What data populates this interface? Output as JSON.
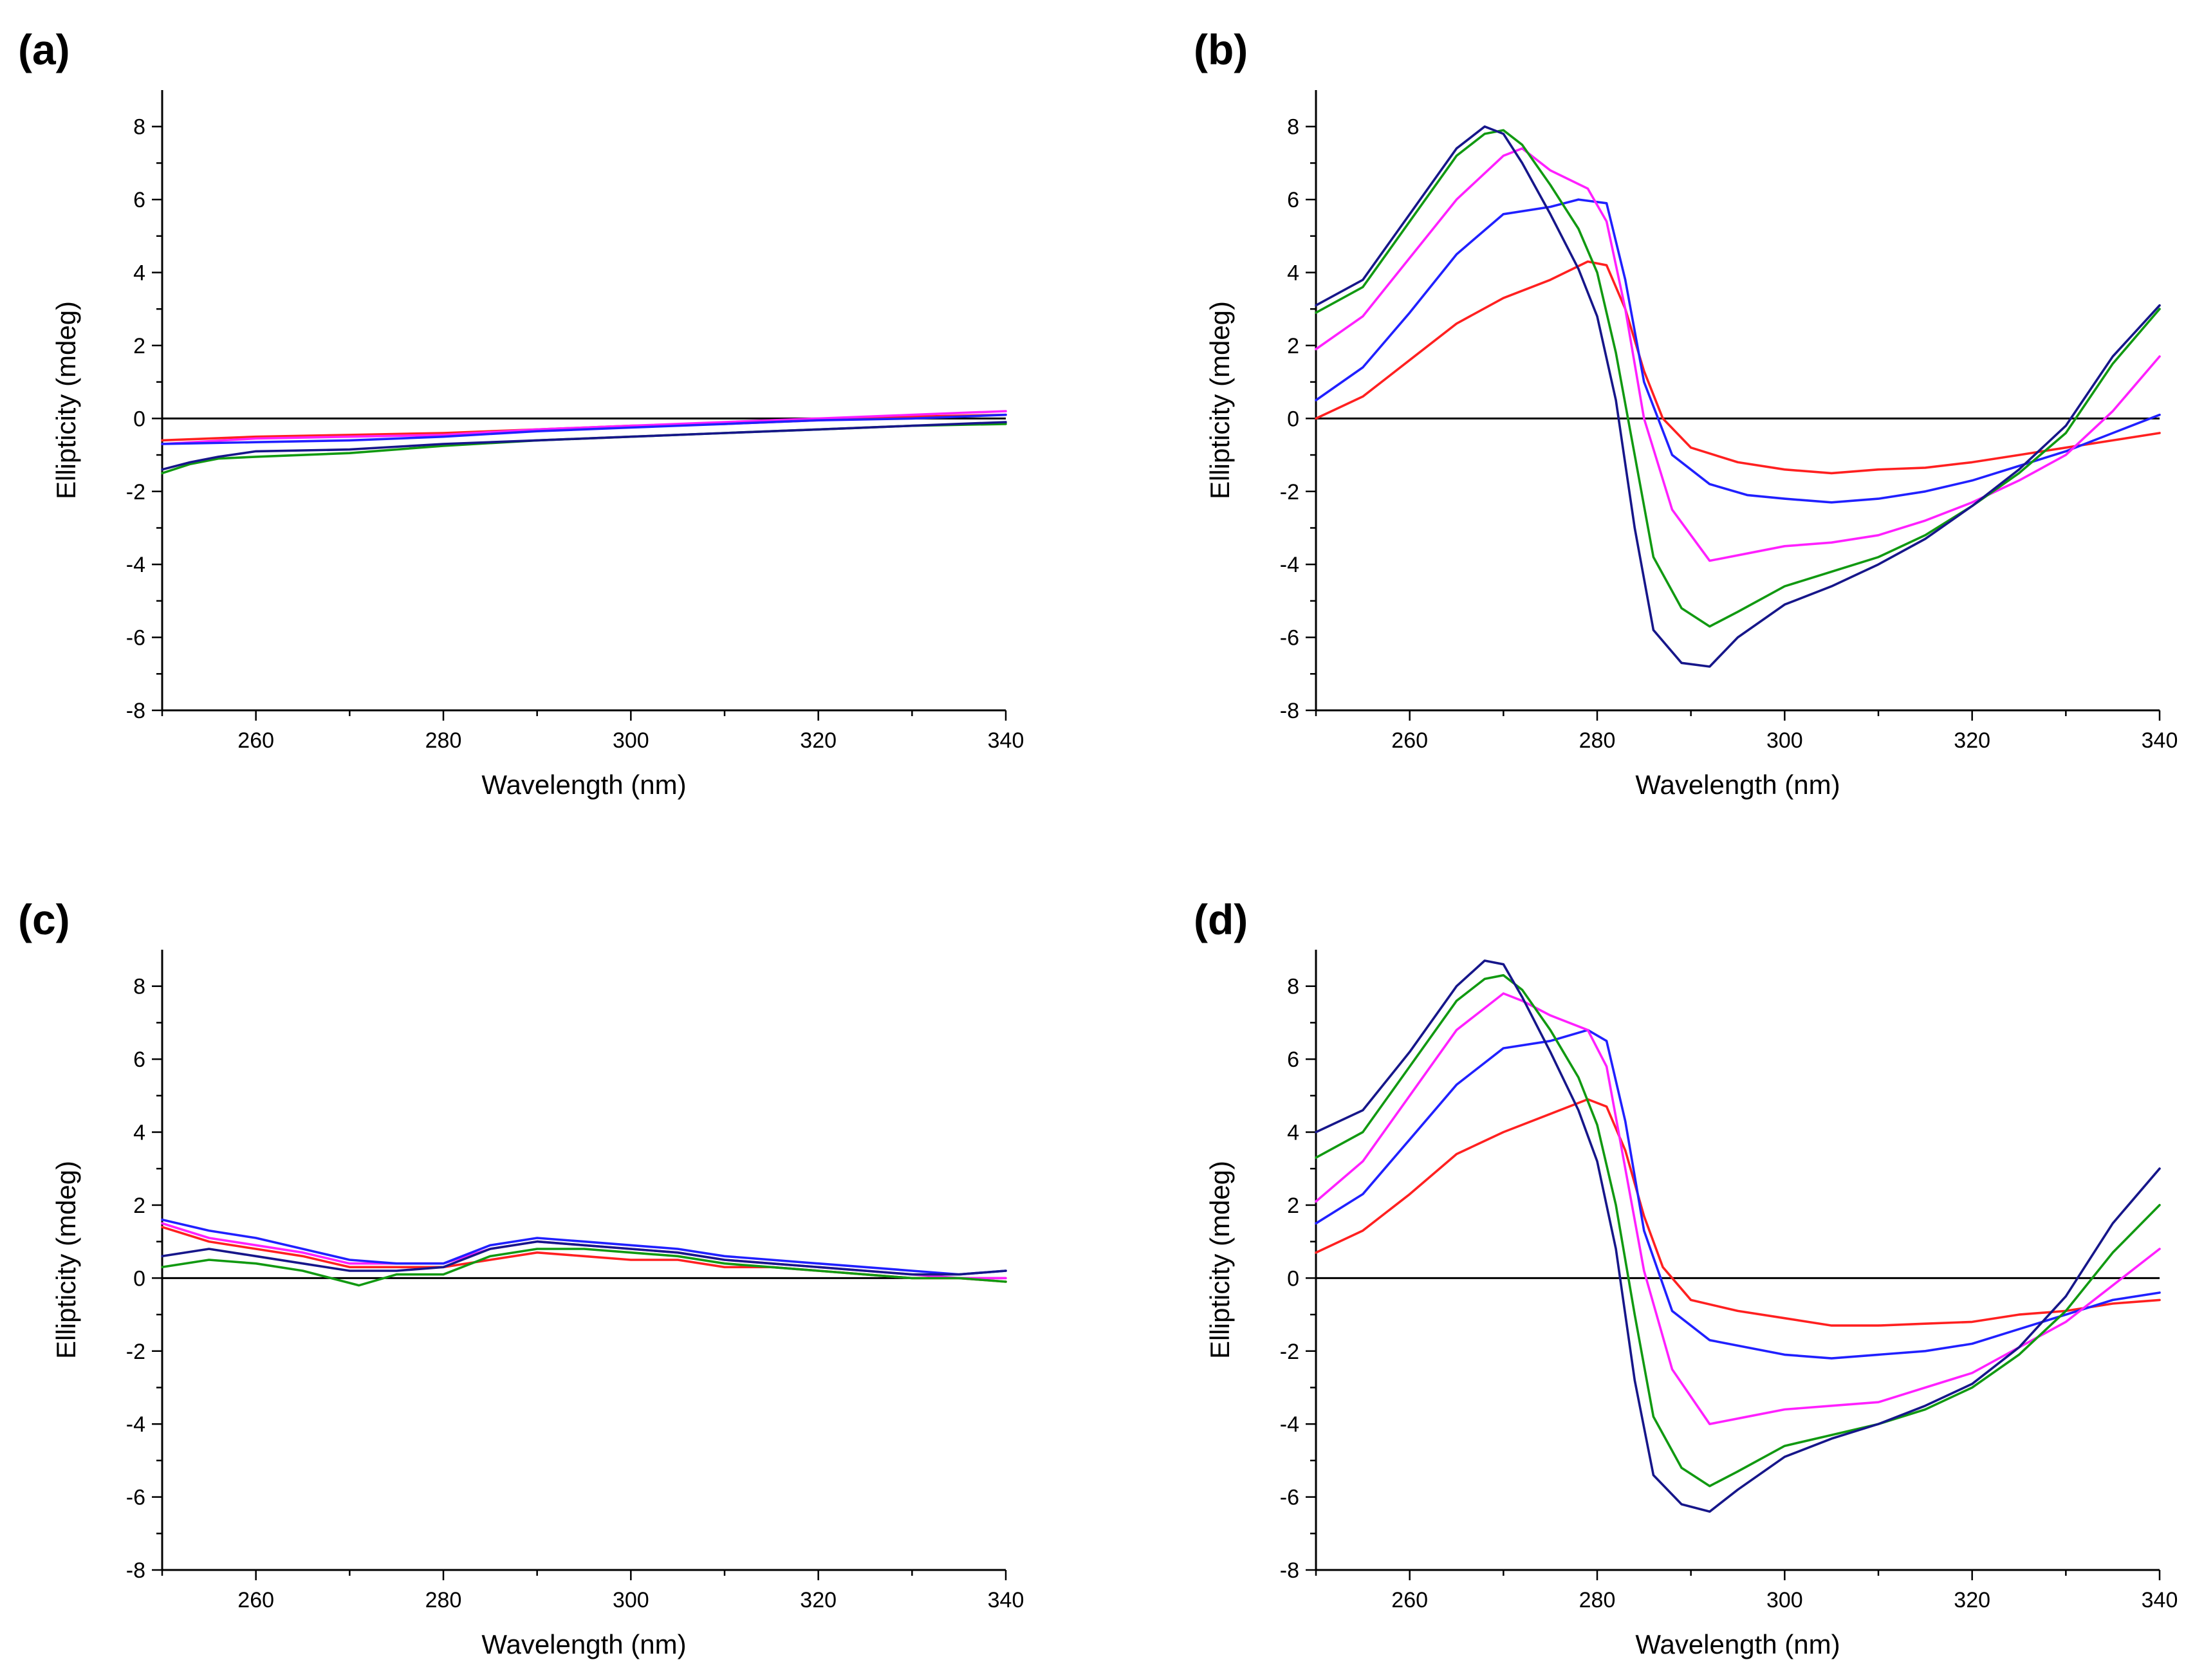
{
  "figure": {
    "panel_colors": {
      "red": "#ff2020",
      "blue": "#2020ff",
      "magenta": "#ff20ff",
      "green": "#119911",
      "navy": "#16168a"
    }
  },
  "chart_data": [
    {
      "type": "line",
      "panel_label": "(a)",
      "xlabel": "Wavelength (nm)",
      "ylabel": "Ellipticity (mdeg)",
      "xlim": [
        250,
        340
      ],
      "ylim": [
        -8,
        9
      ],
      "xticks": [
        260,
        280,
        300,
        320,
        340
      ],
      "yticks": [
        -8,
        -6,
        -4,
        -2,
        0,
        2,
        4,
        6,
        8
      ],
      "reference_line_y": 0,
      "series": [
        {
          "name": "red",
          "color": "#ff2020",
          "x": [
            250,
            260,
            270,
            280,
            290,
            300,
            310,
            320,
            330,
            340
          ],
          "y": [
            -0.6,
            -0.5,
            -0.45,
            -0.4,
            -0.3,
            -0.2,
            -0.15,
            -0.05,
            0.05,
            0.1
          ]
        },
        {
          "name": "magenta",
          "color": "#ff20ff",
          "x": [
            250,
            260,
            270,
            280,
            290,
            300,
            310,
            320,
            330,
            340
          ],
          "y": [
            -0.7,
            -0.55,
            -0.5,
            -0.45,
            -0.3,
            -0.2,
            -0.1,
            0.0,
            0.1,
            0.2
          ]
        },
        {
          "name": "blue",
          "color": "#2020ff",
          "x": [
            250,
            260,
            270,
            280,
            290,
            300,
            310,
            320,
            330,
            340
          ],
          "y": [
            -0.7,
            -0.65,
            -0.6,
            -0.5,
            -0.35,
            -0.25,
            -0.15,
            -0.05,
            0.0,
            0.1
          ]
        },
        {
          "name": "green",
          "color": "#119911",
          "x": [
            250,
            253,
            256,
            260,
            270,
            280,
            290,
            300,
            310,
            320,
            330,
            340
          ],
          "y": [
            -1.5,
            -1.25,
            -1.1,
            -1.05,
            -0.95,
            -0.75,
            -0.6,
            -0.5,
            -0.4,
            -0.3,
            -0.2,
            -0.15
          ]
        },
        {
          "name": "navy",
          "color": "#16168a",
          "x": [
            250,
            253,
            256,
            260,
            270,
            280,
            290,
            300,
            310,
            320,
            330,
            340
          ],
          "y": [
            -1.4,
            -1.2,
            -1.05,
            -0.9,
            -0.85,
            -0.7,
            -0.6,
            -0.5,
            -0.4,
            -0.3,
            -0.2,
            -0.1
          ]
        }
      ]
    },
    {
      "type": "line",
      "panel_label": "(b)",
      "xlabel": "Wavelength (nm)",
      "ylabel": "Ellipticity (mdeg)",
      "xlim": [
        250,
        340
      ],
      "ylim": [
        -8,
        9
      ],
      "xticks": [
        260,
        280,
        300,
        320,
        340
      ],
      "yticks": [
        -8,
        -6,
        -4,
        -2,
        0,
        2,
        4,
        6,
        8
      ],
      "reference_line_y": 0,
      "series": [
        {
          "name": "red",
          "color": "#ff2020",
          "x": [
            250,
            255,
            260,
            265,
            270,
            275,
            279,
            281,
            283,
            285,
            287,
            290,
            295,
            300,
            305,
            310,
            315,
            320,
            325,
            330,
            335,
            340
          ],
          "y": [
            0.0,
            0.6,
            1.6,
            2.6,
            3.3,
            3.8,
            4.3,
            4.2,
            3.0,
            1.3,
            0.0,
            -0.8,
            -1.2,
            -1.4,
            -1.5,
            -1.4,
            -1.35,
            -1.2,
            -1.0,
            -0.8,
            -0.6,
            -0.4
          ]
        },
        {
          "name": "blue",
          "color": "#2020ff",
          "x": [
            250,
            255,
            260,
            265,
            270,
            275,
            278,
            281,
            283,
            285,
            288,
            292,
            296,
            300,
            305,
            310,
            315,
            320,
            325,
            330,
            335,
            340
          ],
          "y": [
            0.5,
            1.4,
            2.9,
            4.5,
            5.6,
            5.8,
            6.0,
            5.9,
            3.8,
            1.0,
            -1.0,
            -1.8,
            -2.1,
            -2.2,
            -2.3,
            -2.2,
            -2.0,
            -1.7,
            -1.3,
            -0.9,
            -0.4,
            0.1
          ]
        },
        {
          "name": "magenta",
          "color": "#ff20ff",
          "x": [
            250,
            255,
            260,
            265,
            270,
            272,
            275,
            279,
            281,
            283,
            285,
            288,
            292,
            296,
            300,
            305,
            310,
            315,
            320,
            325,
            330,
            335,
            340
          ],
          "y": [
            1.9,
            2.8,
            4.4,
            6.0,
            7.2,
            7.4,
            6.8,
            6.3,
            5.4,
            3.0,
            0.0,
            -2.5,
            -3.9,
            -3.7,
            -3.5,
            -3.4,
            -3.2,
            -2.8,
            -2.3,
            -1.7,
            -1.0,
            0.2,
            1.7
          ]
        },
        {
          "name": "green",
          "color": "#119911",
          "x": [
            250,
            255,
            260,
            265,
            268,
            270,
            272,
            275,
            278,
            280,
            282,
            284,
            286,
            289,
            292,
            295,
            300,
            305,
            310,
            315,
            320,
            325,
            330,
            335,
            340
          ],
          "y": [
            2.9,
            3.6,
            5.4,
            7.2,
            7.8,
            7.9,
            7.5,
            6.4,
            5.2,
            4.0,
            1.8,
            -1.0,
            -3.8,
            -5.2,
            -5.7,
            -5.3,
            -4.6,
            -4.2,
            -3.8,
            -3.2,
            -2.4,
            -1.5,
            -0.4,
            1.5,
            3.0
          ]
        },
        {
          "name": "navy",
          "color": "#16168a",
          "x": [
            250,
            255,
            260,
            265,
            268,
            270,
            272,
            275,
            278,
            280,
            282,
            284,
            286,
            289,
            292,
            295,
            300,
            305,
            310,
            315,
            320,
            325,
            330,
            335,
            340
          ],
          "y": [
            3.1,
            3.8,
            5.6,
            7.4,
            8.0,
            7.8,
            7.0,
            5.6,
            4.1,
            2.8,
            0.5,
            -3.0,
            -5.8,
            -6.7,
            -6.8,
            -6.0,
            -5.1,
            -4.6,
            -4.0,
            -3.3,
            -2.4,
            -1.4,
            -0.2,
            1.7,
            3.1
          ]
        }
      ]
    },
    {
      "type": "line",
      "panel_label": "(c)",
      "xlabel": "Wavelength (nm)",
      "ylabel": "Ellipticity (mdeg)",
      "xlim": [
        250,
        340
      ],
      "ylim": [
        -8,
        9
      ],
      "xticks": [
        260,
        280,
        300,
        320,
        340
      ],
      "yticks": [
        -8,
        -6,
        -4,
        -2,
        0,
        2,
        4,
        6,
        8
      ],
      "reference_line_y": 0,
      "series": [
        {
          "name": "red",
          "color": "#ff2020",
          "x": [
            250,
            255,
            260,
            265,
            270,
            275,
            280,
            285,
            290,
            295,
            300,
            305,
            310,
            315,
            320,
            325,
            330,
            335,
            340
          ],
          "y": [
            1.4,
            1.0,
            0.8,
            0.6,
            0.3,
            0.3,
            0.3,
            0.5,
            0.7,
            0.6,
            0.5,
            0.5,
            0.3,
            0.3,
            0.2,
            0.1,
            0.0,
            0.0,
            -0.1
          ]
        },
        {
          "name": "magenta",
          "color": "#ff20ff",
          "x": [
            250,
            255,
            260,
            265,
            270,
            275,
            280,
            285,
            290,
            295,
            300,
            305,
            310,
            315,
            320,
            325,
            330,
            335,
            340
          ],
          "y": [
            1.5,
            1.1,
            0.9,
            0.7,
            0.4,
            0.4,
            0.4,
            0.8,
            1.0,
            0.9,
            0.8,
            0.7,
            0.5,
            0.4,
            0.3,
            0.2,
            0.1,
            0.0,
            0.0
          ]
        },
        {
          "name": "blue",
          "color": "#2020ff",
          "x": [
            250,
            255,
            260,
            265,
            270,
            275,
            280,
            285,
            290,
            295,
            300,
            305,
            310,
            315,
            320,
            325,
            330,
            335,
            340
          ],
          "y": [
            1.6,
            1.3,
            1.1,
            0.8,
            0.5,
            0.4,
            0.4,
            0.9,
            1.1,
            1.0,
            0.9,
            0.8,
            0.6,
            0.5,
            0.4,
            0.3,
            0.2,
            0.1,
            0.2
          ]
        },
        {
          "name": "green",
          "color": "#119911",
          "x": [
            250,
            255,
            260,
            265,
            268,
            271,
            275,
            280,
            285,
            290,
            295,
            300,
            305,
            310,
            315,
            320,
            325,
            330,
            335,
            340
          ],
          "y": [
            0.3,
            0.5,
            0.4,
            0.2,
            0.0,
            -0.2,
            0.1,
            0.1,
            0.6,
            0.8,
            0.8,
            0.7,
            0.6,
            0.4,
            0.3,
            0.2,
            0.1,
            0.0,
            0.0,
            -0.1
          ]
        },
        {
          "name": "navy",
          "color": "#16168a",
          "x": [
            250,
            255,
            260,
            265,
            270,
            275,
            280,
            285,
            290,
            295,
            300,
            305,
            310,
            315,
            320,
            325,
            330,
            335,
            340
          ],
          "y": [
            0.6,
            0.8,
            0.6,
            0.4,
            0.2,
            0.2,
            0.3,
            0.8,
            1.0,
            0.9,
            0.8,
            0.7,
            0.5,
            0.4,
            0.3,
            0.2,
            0.1,
            0.1,
            0.2
          ]
        }
      ]
    },
    {
      "type": "line",
      "panel_label": "(d)",
      "xlabel": "Wavelength (nm)",
      "ylabel": "Ellipticity (mdeg)",
      "xlim": [
        250,
        340
      ],
      "ylim": [
        -8,
        9
      ],
      "xticks": [
        260,
        280,
        300,
        320,
        340
      ],
      "yticks": [
        -8,
        -6,
        -4,
        -2,
        0,
        2,
        4,
        6,
        8
      ],
      "reference_line_y": 0,
      "series": [
        {
          "name": "red",
          "color": "#ff2020",
          "x": [
            250,
            255,
            260,
            265,
            270,
            275,
            279,
            281,
            283,
            285,
            287,
            290,
            295,
            300,
            305,
            310,
            315,
            320,
            325,
            330,
            335,
            340
          ],
          "y": [
            0.7,
            1.3,
            2.3,
            3.4,
            4.0,
            4.5,
            4.9,
            4.7,
            3.5,
            1.7,
            0.3,
            -0.6,
            -0.9,
            -1.1,
            -1.3,
            -1.3,
            -1.25,
            -1.2,
            -1.0,
            -0.9,
            -0.7,
            -0.6
          ]
        },
        {
          "name": "blue",
          "color": "#2020ff",
          "x": [
            250,
            255,
            260,
            265,
            270,
            275,
            279,
            281,
            283,
            285,
            288,
            292,
            296,
            300,
            305,
            310,
            315,
            320,
            325,
            330,
            335,
            340
          ],
          "y": [
            1.5,
            2.3,
            3.8,
            5.3,
            6.3,
            6.5,
            6.8,
            6.5,
            4.3,
            1.3,
            -0.9,
            -1.7,
            -1.9,
            -2.1,
            -2.2,
            -2.1,
            -2.0,
            -1.8,
            -1.4,
            -1.0,
            -0.6,
            -0.4
          ]
        },
        {
          "name": "magenta",
          "color": "#ff20ff",
          "x": [
            250,
            255,
            260,
            265,
            270,
            272,
            275,
            279,
            281,
            283,
            285,
            288,
            292,
            296,
            300,
            305,
            310,
            315,
            320,
            325,
            330,
            335,
            340
          ],
          "y": [
            2.1,
            3.2,
            5.0,
            6.8,
            7.8,
            7.6,
            7.2,
            6.8,
            5.8,
            3.0,
            0.2,
            -2.5,
            -4.0,
            -3.8,
            -3.6,
            -3.5,
            -3.4,
            -3.0,
            -2.6,
            -1.9,
            -1.2,
            -0.2,
            0.8
          ]
        },
        {
          "name": "green",
          "color": "#119911",
          "x": [
            250,
            255,
            260,
            265,
            268,
            270,
            272,
            275,
            278,
            280,
            282,
            284,
            286,
            289,
            292,
            295,
            300,
            305,
            310,
            315,
            320,
            325,
            330,
            335,
            340
          ],
          "y": [
            3.3,
            4.0,
            5.8,
            7.6,
            8.2,
            8.3,
            7.9,
            6.8,
            5.5,
            4.2,
            2.0,
            -1.0,
            -3.8,
            -5.2,
            -5.7,
            -5.3,
            -4.6,
            -4.3,
            -4.0,
            -3.6,
            -3.0,
            -2.1,
            -0.9,
            0.7,
            2.0
          ]
        },
        {
          "name": "navy",
          "color": "#16168a",
          "x": [
            250,
            255,
            260,
            265,
            268,
            270,
            272,
            275,
            278,
            280,
            282,
            284,
            286,
            289,
            292,
            295,
            300,
            305,
            310,
            315,
            320,
            325,
            330,
            335,
            340
          ],
          "y": [
            4.0,
            4.6,
            6.2,
            8.0,
            8.7,
            8.6,
            7.7,
            6.2,
            4.6,
            3.2,
            0.8,
            -2.8,
            -5.4,
            -6.2,
            -6.4,
            -5.8,
            -4.9,
            -4.4,
            -4.0,
            -3.5,
            -2.9,
            -1.9,
            -0.5,
            1.5,
            3.0
          ]
        }
      ]
    }
  ]
}
